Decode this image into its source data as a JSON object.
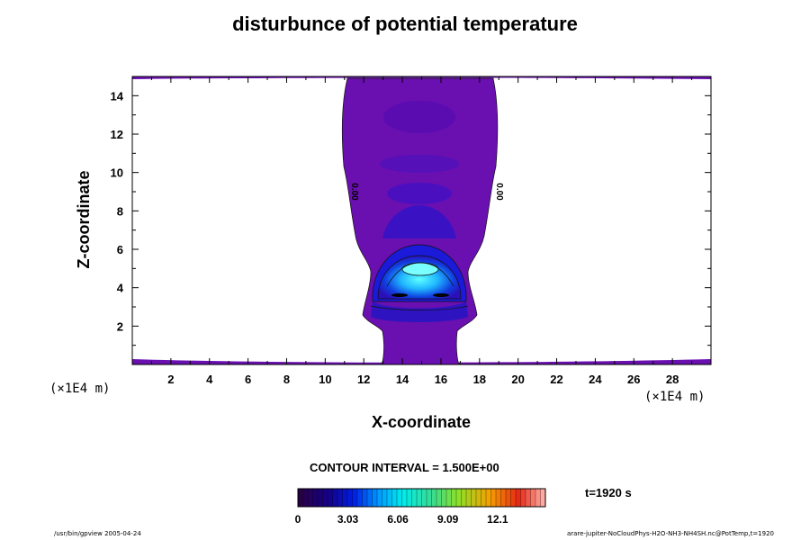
{
  "chart_data": {
    "type": "heatmap",
    "title": "disturbunce of potential temperature",
    "xlabel": "X-coordinate",
    "ylabel": "Z-coordinate",
    "x_unit": "(×1E4 m)",
    "y_unit": "(×1E4 m)",
    "xlim": [
      0,
      30
    ],
    "ylim": [
      0,
      15
    ],
    "x_ticks": [
      2,
      4,
      6,
      8,
      10,
      12,
      14,
      16,
      18,
      20,
      22,
      24,
      26,
      28
    ],
    "y_ticks": [
      2,
      4,
      6,
      8,
      10,
      12,
      14
    ],
    "contour_labels": [
      {
        "text": "0.00",
        "x": 11.2,
        "z": 9.0
      },
      {
        "text": "0.00",
        "x": 18.7,
        "z": 9.0
      }
    ],
    "contour_interval": "CONTOUR INTERVAL = 1.500E+00",
    "colorbar": {
      "min": 0,
      "max": 15,
      "tick_values": [
        0,
        3.03,
        6.06,
        9.09,
        12.1
      ],
      "tick_labels": [
        "0",
        "3.03",
        "6.06",
        "9.09",
        "12.1"
      ]
    },
    "time_label": "t=1920 s"
  },
  "footer": {
    "left": "/usr/bin/gpview 2005-04-24",
    "right": "arare-jupiter-NoCloudPhys-H2O-NH3-NH4SH.nc@PotTemp,t=1920"
  },
  "colors": {
    "background_level": "#6a0fb0",
    "core": "#30ddff"
  }
}
